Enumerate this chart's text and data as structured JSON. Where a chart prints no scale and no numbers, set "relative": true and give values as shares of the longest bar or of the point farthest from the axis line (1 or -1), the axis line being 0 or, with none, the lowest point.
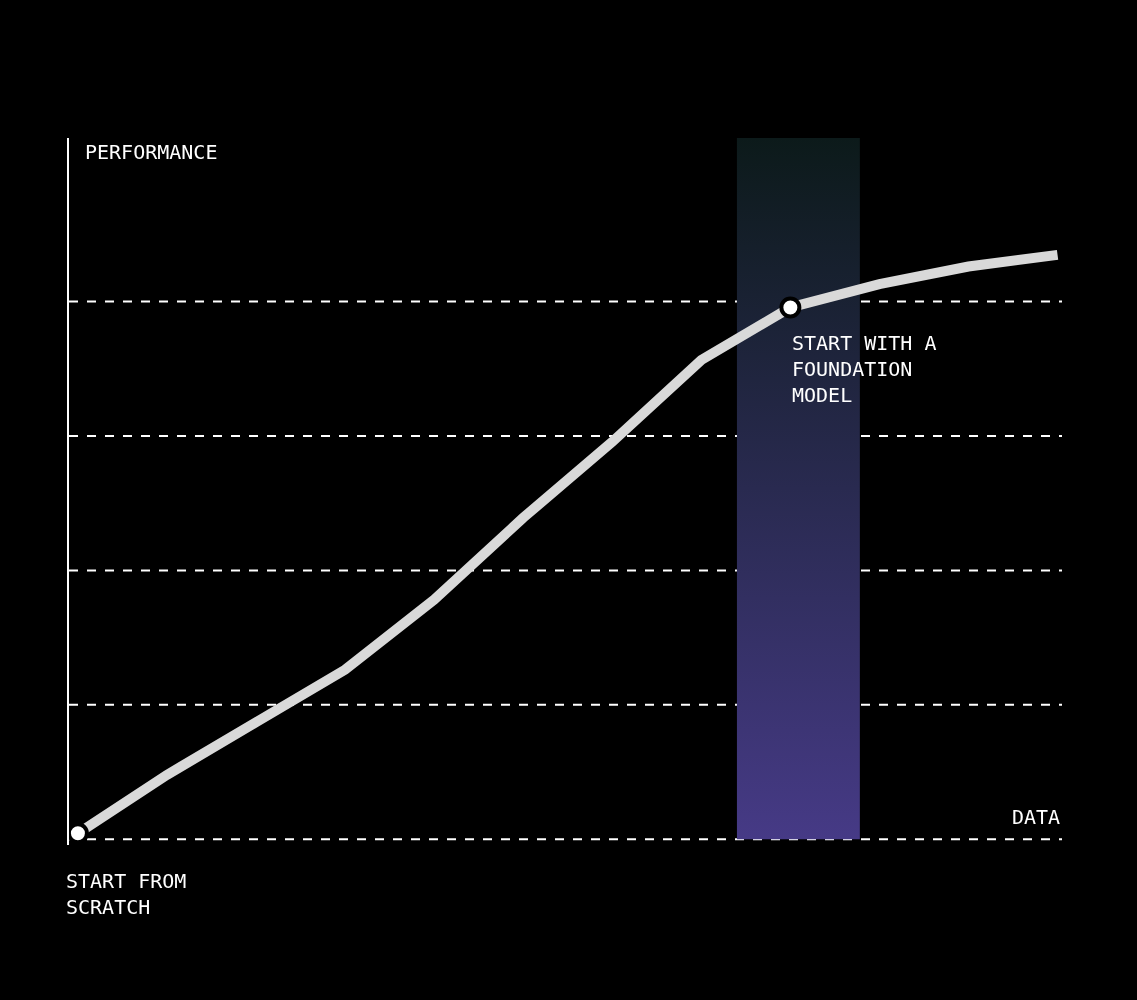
{
  "chart_data": {
    "type": "line",
    "relative": true,
    "xlabel": "DATA",
    "ylabel": "PERFORMANCE",
    "categories": [
      null,
      null,
      null,
      null,
      null,
      null,
      null,
      null,
      null,
      null,
      null,
      null
    ],
    "series": [
      {
        "color": "#d9d9d9",
        "values": [
          0.01,
          0.11,
          0.2,
          0.29,
          0.41,
          0.55,
          0.68,
          0.82,
          0.91,
          0.95,
          0.98,
          1
        ]
      }
    ],
    "ref_lines": [
      {
        "axis": "y",
        "value": 0,
        "color": "#ffffff",
        "line_style": "dashed"
      },
      {
        "axis": "y",
        "value": 0.23,
        "color": "#ffffff",
        "line_style": "dashed"
      },
      {
        "axis": "y",
        "value": 0.46,
        "color": "#ffffff",
        "line_style": "dashed"
      },
      {
        "axis": "y",
        "value": 0.69,
        "color": "#ffffff",
        "line_style": "dashed"
      },
      {
        "axis": "y",
        "value": 0.92,
        "color": "#ffffff",
        "line_style": "dashed"
      }
    ],
    "annotations": [
      "START FROM\nSCRATCH",
      "START WITH A\nFOUNDATION\nMODEL"
    ],
    "grid": false
  }
}
